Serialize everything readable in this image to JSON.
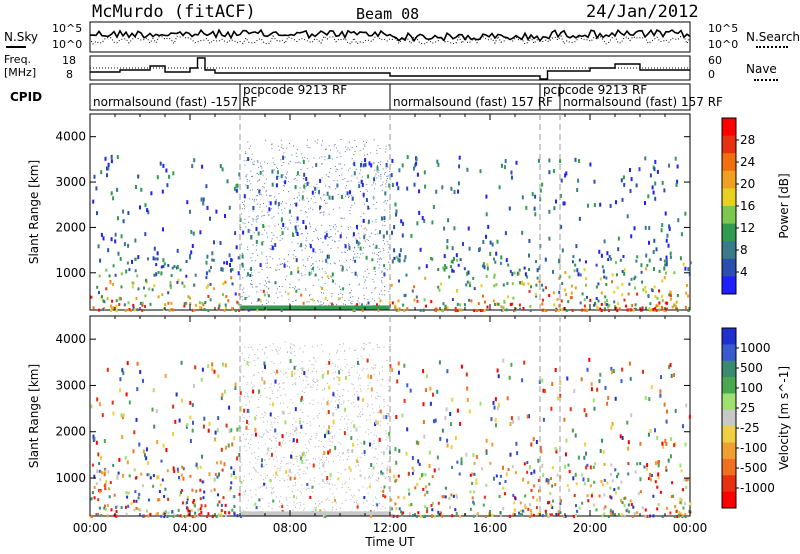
{
  "header": {
    "title": "McMurdo (fitACF)",
    "beam": "Beam 08",
    "date": "24/Jan/2012"
  },
  "labels": {
    "nsky": "N.Sky",
    "nsearch": "N.Search",
    "freq": "Freq.",
    "freq_unit": "[MHz]",
    "nave": "Nave",
    "cpid": "CPID",
    "nsky_tick_top": "10^5",
    "nsky_tick_bottom": "10^0",
    "nsearch_tick_top": "10^5",
    "nsearch_tick_bottom": "10^0",
    "freq_tick_top": "18",
    "freq_tick_bottom": "8",
    "nave_tick_top": "60",
    "nave_tick_bottom": "0"
  },
  "cpid_segments": [
    {
      "label": "normalsound (fast) -157 RF",
      "start": 0.0,
      "end": 6.0
    },
    {
      "label": "pcpcode 9213 RF",
      "start": 6.0,
      "end": 12.0
    },
    {
      "label": "normalsound (fast) 157 RF",
      "start": 12.0,
      "end": 18.0
    },
    {
      "label": "pcpcode 9213 RF",
      "start": 18.0,
      "end": 18.8
    },
    {
      "label": "normalsound (fast) 157 RF",
      "start": 18.8,
      "end": 24.0
    }
  ],
  "colors": {
    "power": [
      "#1f1fff",
      "#2a4fb0",
      "#3a7a8a",
      "#2f9a50",
      "#7ec850",
      "#e8d020",
      "#f0a020",
      "#f07010",
      "#e83010",
      "#ff0000"
    ],
    "velocity": [
      "#2030d0",
      "#3a5ad0",
      "#3a8a70",
      "#4aa850",
      "#a0e070",
      "#c8c8c8",
      "#f0d040",
      "#f0a030",
      "#f07020",
      "#e83010",
      "#ff0000"
    ]
  },
  "chart_data": [
    {
      "type": "heatmap",
      "name": "Power panel",
      "xlabel": "",
      "ylabel": "Slant Range [km]",
      "xlim": [
        0,
        24
      ],
      "ylim": [
        180,
        4500
      ],
      "yticks": [
        "4000",
        "3000",
        "2000",
        "1000"
      ],
      "yticks_values": [
        4000,
        3000,
        2000,
        1000
      ],
      "colorbar": {
        "label": "Power [dB]",
        "ticks": [
          "28",
          "24",
          "20",
          "16",
          "12",
          "8",
          "4"
        ]
      }
    },
    {
      "type": "heatmap",
      "name": "Velocity panel",
      "xlabel": "Time UT",
      "ylabel": "Slant Range [km]",
      "xlim": [
        0,
        24
      ],
      "ylim": [
        180,
        4500
      ],
      "xticks": [
        "00:00",
        "04:00",
        "08:00",
        "12:00",
        "16:00",
        "20:00",
        "00:00"
      ],
      "xticks_values": [
        0,
        4,
        8,
        12,
        16,
        20,
        24
      ],
      "yticks": [
        "4000",
        "3000",
        "2000",
        "1000"
      ],
      "yticks_values": [
        4000,
        3000,
        2000,
        1000
      ],
      "colorbar": {
        "label": "Velocity [m s^-1]",
        "ticks": [
          "1000",
          "500",
          "100",
          "25",
          "-25",
          "-100",
          "-500",
          "-1000"
        ]
      }
    }
  ]
}
